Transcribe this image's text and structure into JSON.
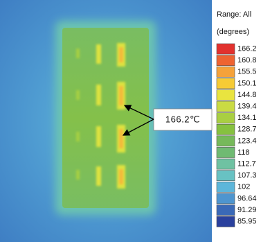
{
  "legend": {
    "title": "Range: All",
    "unit": "(degrees)",
    "entries": [
      {
        "value": 166.2,
        "color": "#e2312e"
      },
      {
        "value": 160.8,
        "color": "#ee6331"
      },
      {
        "value": 155.5,
        "color": "#f5a23a"
      },
      {
        "value": 150.1,
        "color": "#f6cb35"
      },
      {
        "value": 144.8,
        "color": "#e9e43f"
      },
      {
        "value": 139.4,
        "color": "#cadb43"
      },
      {
        "value": 134.1,
        "color": "#a9cf42"
      },
      {
        "value": 128.7,
        "color": "#86c13f"
      },
      {
        "value": 123.4,
        "color": "#76b95a"
      },
      {
        "value": 118,
        "color": "#6fba72"
      },
      {
        "value": 112.7,
        "color": "#6fc2a2"
      },
      {
        "value": 107.3,
        "color": "#68c2c3"
      },
      {
        "value": 102,
        "color": "#5db6da"
      },
      {
        "value": 96.64,
        "color": "#4e95cf"
      },
      {
        "value": 91.29,
        "color": "#3a69b7"
      },
      {
        "value": 85.95,
        "color": "#2a409d"
      }
    ]
  },
  "annotation": {
    "text": "166.2℃"
  }
}
